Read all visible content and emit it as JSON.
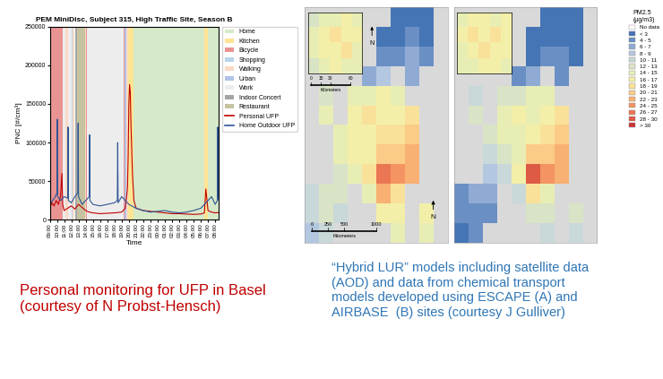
{
  "chart_data": {
    "type": "line",
    "title": "PEM MiniDisc, Subject 315, High Traffic Site, Season B",
    "x_label": "Time",
    "y_label": "PNC [#/cm³]",
    "xlim": [
      0,
      23.5
    ],
    "xticks": [
      {
        "value": 0,
        "label": "09:00"
      },
      {
        "value": 1,
        "label": "10:00"
      },
      {
        "value": 2,
        "label": "11:00"
      },
      {
        "value": 3,
        "label": "12:00"
      },
      {
        "value": 4,
        "label": "13:00"
      },
      {
        "value": 5,
        "label": "14:00"
      },
      {
        "value": 6,
        "label": "15:00"
      },
      {
        "value": 7,
        "label": "16:00"
      },
      {
        "value": 8,
        "label": "17:00"
      },
      {
        "value": 9,
        "label": "18:00"
      },
      {
        "value": 10,
        "label": "19:00"
      },
      {
        "value": 11,
        "label": "20:00"
      },
      {
        "value": 12,
        "label": "21:00"
      },
      {
        "value": 13,
        "label": "22:00"
      },
      {
        "value": 14,
        "label": "23:00"
      },
      {
        "value": 15,
        "label": "00:00"
      },
      {
        "value": 16,
        "label": "01:00"
      },
      {
        "value": 17,
        "label": "02:00"
      },
      {
        "value": 18,
        "label": "03:00"
      },
      {
        "value": 19,
        "label": "04:00"
      },
      {
        "value": 20,
        "label": "05:00"
      },
      {
        "value": 21,
        "label": "06:00"
      },
      {
        "value": 22,
        "label": "07:00"
      },
      {
        "value": 23,
        "label": "08:00"
      }
    ],
    "ylim": [
      0,
      250000
    ],
    "yticks": [
      0,
      50000,
      100000,
      150000,
      200000,
      250000
    ],
    "legend": "upper left",
    "activities": [
      {
        "name": "Home",
        "color": "#c5e0b3"
      },
      {
        "name": "Kitchen",
        "color": "#ffd966"
      },
      {
        "name": "Bicycle",
        "color": "#e06666"
      },
      {
        "name": "Shopping",
        "color": "#9dc3e6"
      },
      {
        "name": "Walking",
        "color": "#f8cbad"
      },
      {
        "name": "Urban",
        "color": "#8faadc"
      },
      {
        "name": "Work",
        "color": "#e7e6e6"
      },
      {
        "name": "Indoor Concert",
        "color": "#7f7f7f"
      },
      {
        "name": "Restaurant",
        "color": "#aeaa7a"
      }
    ],
    "bands": [
      {
        "activity": "Bicycle",
        "start": 0.0,
        "end": 1.8
      },
      {
        "activity": "Work",
        "start": 1.8,
        "end": 2.2
      },
      {
        "activity": "Walking",
        "start": 2.2,
        "end": 2.5
      },
      {
        "activity": "Work",
        "start": 2.5,
        "end": 3.0
      },
      {
        "activity": "Shopping",
        "start": 3.0,
        "end": 3.2
      },
      {
        "activity": "Walking",
        "start": 3.2,
        "end": 3.4
      },
      {
        "activity": "Indoor Concert",
        "start": 3.6,
        "end": 3.8
      },
      {
        "activity": "Restaurant",
        "start": 3.8,
        "end": 4.9
      },
      {
        "activity": "Walking",
        "start": 4.9,
        "end": 5.1
      },
      {
        "activity": "Bicycle",
        "start": 5.1,
        "end": 5.2
      },
      {
        "activity": "Work",
        "start": 5.2,
        "end": 10.3
      },
      {
        "activity": "Bicycle",
        "start": 10.3,
        "end": 10.4
      },
      {
        "activity": "Urban",
        "start": 10.4,
        "end": 10.6
      },
      {
        "activity": "Walking",
        "start": 10.6,
        "end": 10.9
      },
      {
        "activity": "Kitchen",
        "start": 10.9,
        "end": 11.6
      },
      {
        "activity": "Home",
        "start": 11.6,
        "end": 21.5
      },
      {
        "activity": "Kitchen",
        "start": 21.5,
        "end": 22.0
      },
      {
        "activity": "Home",
        "start": 22.0,
        "end": 23.5
      }
    ],
    "series": [
      {
        "name": "Personal UFP",
        "color": "#c00000",
        "x": [
          0,
          0.3,
          0.6,
          0.9,
          1.2,
          1.5,
          1.7,
          1.8,
          2.0,
          2.5,
          3.0,
          3.5,
          4.0,
          4.5,
          5.0,
          5.5,
          6.0,
          7.0,
          8.0,
          9.0,
          10.0,
          10.5,
          10.8,
          10.9,
          11.0,
          11.1,
          11.2,
          11.3,
          11.5,
          11.7,
          12.0,
          13.0,
          14.0,
          15.0,
          16.0,
          17.0,
          18.0,
          19.0,
          20.0,
          21.0,
          21.5,
          21.7,
          22.0,
          22.5,
          23.0,
          23.5
        ],
        "values": [
          15000,
          22000,
          18000,
          25000,
          20000,
          30000,
          60000,
          20000,
          12000,
          15000,
          18000,
          14000,
          20000,
          16000,
          12000,
          10000,
          9000,
          8000,
          8500,
          9000,
          10000,
          15000,
          40000,
          80000,
          150000,
          175000,
          165000,
          120000,
          60000,
          25000,
          15000,
          12000,
          11000,
          10000,
          9000,
          8000,
          8000,
          7500,
          7000,
          7500,
          9000,
          40000,
          12000,
          10000,
          9000,
          9500
        ]
      },
      {
        "name": "Home Outdoor UFP",
        "color": "#2e5597",
        "x": [
          0,
          0.4,
          0.8,
          1.0,
          1.05,
          1.1,
          1.5,
          2.0,
          2.5,
          2.55,
          2.6,
          3.0,
          3.5,
          3.9,
          3.95,
          4.0,
          4.5,
          5.0,
          5.5,
          5.55,
          5.6,
          6.0,
          7.0,
          8.0,
          9.0,
          9.4,
          9.45,
          9.5,
          10.0,
          10.5,
          11.0,
          12.0,
          13.0,
          14.0,
          15.0,
          16.0,
          17.0,
          18.0,
          19.0,
          20.0,
          21.0,
          22.0,
          22.5,
          23.0,
          23.3,
          23.35,
          23.4,
          23.5
        ],
        "values": [
          20000,
          25000,
          30000,
          35000,
          130000,
          30000,
          25000,
          30000,
          28000,
          120000,
          25000,
          22000,
          30000,
          35000,
          125000,
          30000,
          20000,
          25000,
          30000,
          110000,
          25000,
          20000,
          18000,
          20000,
          22000,
          25000,
          100000,
          22000,
          30000,
          25000,
          20000,
          15000,
          12000,
          10000,
          11000,
          12000,
          10000,
          9000,
          10000,
          12000,
          15000,
          25000,
          30000,
          20000,
          25000,
          120000,
          30000,
          25000
        ]
      }
    ]
  },
  "maps": {
    "legend_title": [
      "PM2.5",
      "(µg/m3)"
    ],
    "classes": [
      {
        "label": "No data",
        "color": "#ffffff"
      },
      {
        "label": "< 3",
        "color": "#4575b4"
      },
      {
        "label": "4 - 5",
        "color": "#6a8fc4"
      },
      {
        "label": "6 - 7",
        "color": "#8fabd3"
      },
      {
        "label": "8 - 9",
        "color": "#b3c7e0"
      },
      {
        "label": "10 - 11",
        "color": "#c9d8d8"
      },
      {
        "label": "12 - 13",
        "color": "#d9e3c6"
      },
      {
        "label": "14 - 15",
        "color": "#e8edb4"
      },
      {
        "label": "16 - 17",
        "color": "#f3efa8"
      },
      {
        "label": "18 - 19",
        "color": "#f9e19a"
      },
      {
        "label": "20 - 21",
        "color": "#fbcb88"
      },
      {
        "label": "22 - 23",
        "color": "#f8b073"
      },
      {
        "label": "24 - 25",
        "color": "#f39462"
      },
      {
        "label": "26 - 27",
        "color": "#eb7653"
      },
      {
        "label": "28 - 30",
        "color": "#dd5a45"
      },
      {
        "label": "> 30",
        "color": "#c8373a"
      }
    ],
    "panels": [
      {
        "cells": [
          [
            null,
            null,
            null,
            null,
            null,
            null,
            1,
            1,
            1,
            null
          ],
          [
            null,
            null,
            null,
            null,
            null,
            1,
            1,
            2,
            1,
            null
          ],
          [
            null,
            null,
            null,
            null,
            null,
            2,
            2,
            3,
            2,
            null
          ],
          [
            null,
            null,
            null,
            null,
            3,
            4,
            null,
            3,
            null,
            null
          ],
          [
            null,
            6,
            null,
            7,
            7,
            8,
            7,
            null,
            null,
            null
          ],
          [
            null,
            7,
            null,
            8,
            9,
            8,
            8,
            9,
            null,
            null
          ],
          [
            null,
            null,
            7,
            8,
            8,
            9,
            9,
            10,
            null,
            null
          ],
          [
            null,
            null,
            7,
            8,
            8,
            10,
            10,
            11,
            null,
            null
          ],
          [
            null,
            null,
            6,
            7,
            9,
            13,
            12,
            11,
            null,
            null
          ],
          [
            5,
            6,
            6,
            null,
            7,
            11,
            9,
            null,
            null,
            null
          ],
          [
            5,
            6,
            5,
            null,
            null,
            8,
            8,
            null,
            8,
            null
          ],
          [
            4,
            5,
            null,
            null,
            null,
            null,
            7,
            null,
            7,
            null
          ]
        ],
        "inset_cells": [
          [
            6,
            7,
            7,
            8,
            7
          ],
          [
            7,
            8,
            9,
            8,
            8
          ],
          [
            7,
            8,
            8,
            9,
            7
          ],
          [
            6,
            7,
            8,
            7,
            7
          ]
        ],
        "scale_bar": {
          "ticks": [
            0,
            250,
            500,
            1000
          ],
          "unit": "Kilometers"
        },
        "inset_scale_bar": {
          "ticks": [
            0,
            15,
            30,
            60
          ],
          "unit": "Kilometers"
        },
        "north": "N",
        "inset_north": "N"
      },
      {
        "cells": [
          [
            null,
            null,
            null,
            null,
            null,
            null,
            1,
            1,
            1,
            null
          ],
          [
            null,
            null,
            null,
            null,
            null,
            1,
            1,
            1,
            1,
            null
          ],
          [
            null,
            null,
            null,
            null,
            null,
            1,
            2,
            2,
            1,
            null
          ],
          [
            null,
            null,
            null,
            null,
            2,
            3,
            null,
            2,
            null,
            null
          ],
          [
            null,
            5,
            null,
            6,
            6,
            7,
            7,
            null,
            null,
            null
          ],
          [
            null,
            6,
            null,
            7,
            8,
            7,
            8,
            9,
            null,
            null
          ],
          [
            null,
            null,
            6,
            7,
            7,
            8,
            9,
            10,
            null,
            null
          ],
          [
            null,
            null,
            5,
            6,
            7,
            10,
            10,
            11,
            null,
            null
          ],
          [
            null,
            null,
            4,
            5,
            8,
            14,
            12,
            11,
            null,
            null
          ],
          [
            2,
            3,
            3,
            null,
            5,
            9,
            7,
            null,
            null,
            null
          ],
          [
            2,
            2,
            2,
            null,
            null,
            6,
            6,
            null,
            6,
            null
          ],
          [
            1,
            2,
            null,
            null,
            null,
            null,
            5,
            null,
            5,
            null
          ]
        ],
        "inset_cells": [
          [
            7,
            8,
            8,
            7,
            8
          ],
          [
            8,
            9,
            8,
            9,
            8
          ],
          [
            7,
            8,
            9,
            8,
            8
          ],
          [
            7,
            7,
            8,
            8,
            7
          ]
        ]
      }
    ]
  },
  "captions": [
    {
      "lines": [
        "Personal monitoring for UFP in Basel",
        "(courtesy of N Probst-Hensch)"
      ],
      "color": "#c00000"
    },
    {
      "lines": [
        "“Hybrid LUR” models including satellite data",
        "(AOD) and data from chemical transport",
        "models developed using ESCAPE (A) and",
        "AIRBASE  (B) sites (courtesy J Gulliver)"
      ],
      "color": "#2e75b6"
    }
  ]
}
